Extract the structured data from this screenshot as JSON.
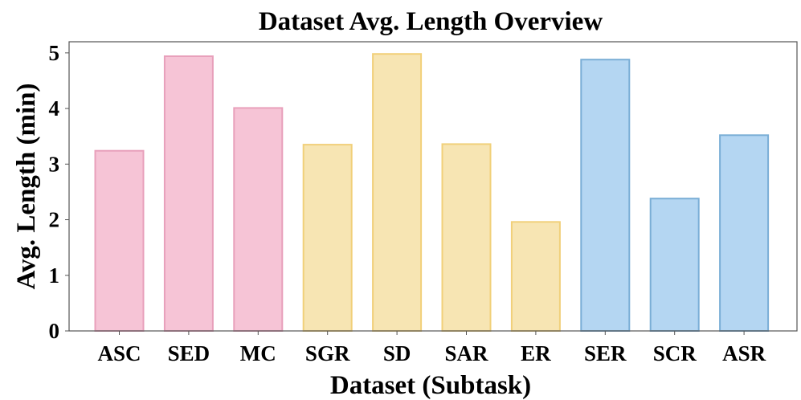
{
  "chart_data": {
    "type": "bar",
    "title": "Dataset Avg. Length Overview",
    "xlabel": "Dataset (Subtask)",
    "ylabel": "Avg. Length (min)",
    "categories": [
      "ASC",
      "SED",
      "MC",
      "SGR",
      "SD",
      "SAR",
      "ER",
      "SER",
      "SCR",
      "ASR"
    ],
    "values": [
      3.24,
      4.94,
      4.01,
      3.35,
      4.98,
      3.36,
      1.96,
      4.88,
      2.38,
      3.52
    ],
    "bar_fill_colors": [
      "#f6c4d6",
      "#f6c4d6",
      "#f6c4d6",
      "#f7e5b3",
      "#f7e5b3",
      "#f7e5b3",
      "#f7e5b3",
      "#b4d6f2",
      "#b4d6f2",
      "#b4d6f2"
    ],
    "bar_edge_colors": [
      "#e8a0bb",
      "#e8a0bb",
      "#e8a0bb",
      "#f1d07a",
      "#f1d07a",
      "#f1d07a",
      "#f1d07a",
      "#7aaed6",
      "#7aaed6",
      "#7aaed6"
    ],
    "ylim": [
      0,
      5.2
    ],
    "yticks": [
      0,
      1,
      2,
      3,
      4,
      5
    ],
    "grid": false,
    "legend": "none"
  }
}
